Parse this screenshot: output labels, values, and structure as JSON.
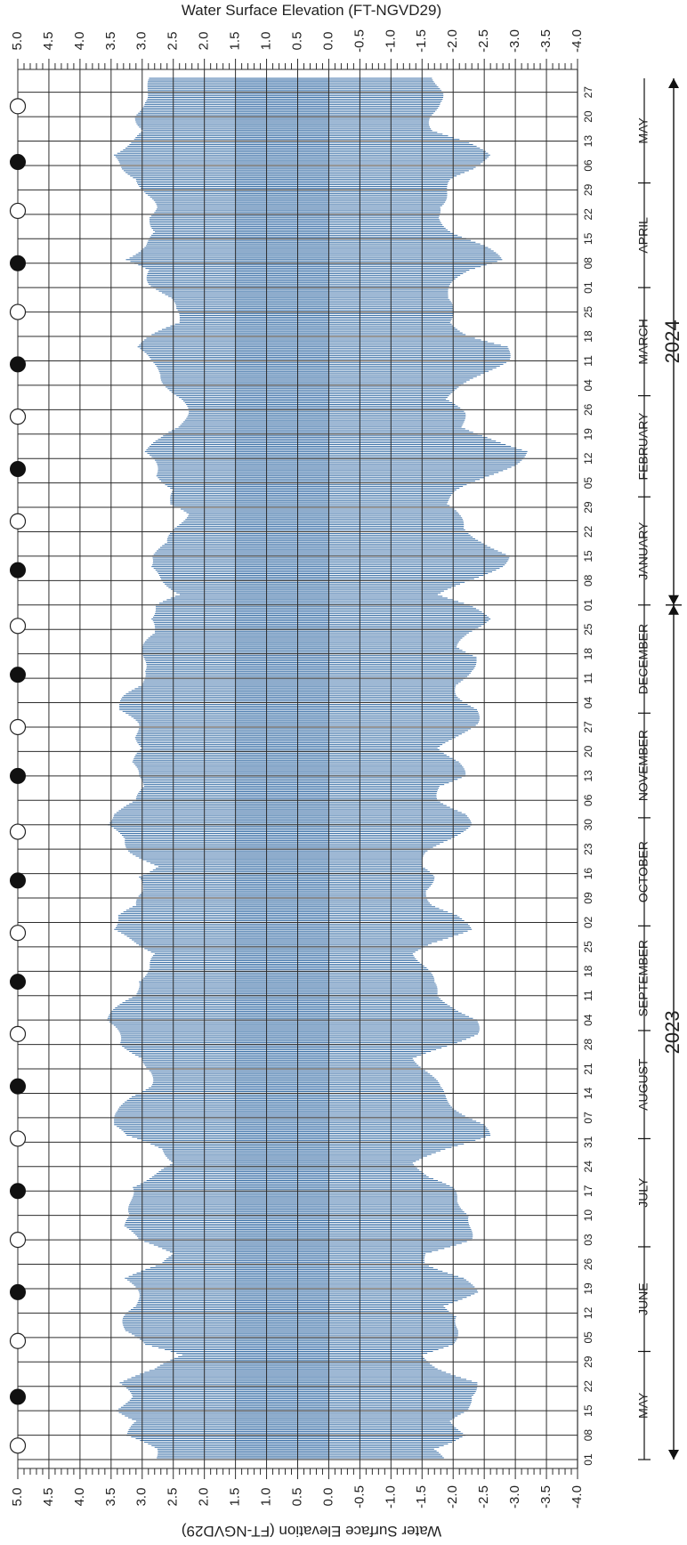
{
  "chart_data": {
    "type": "bar",
    "orientation": "horizontal",
    "x_axis_title": "Water Surface Elevation (FT-NGVD29)",
    "x_ticks": [
      5.0,
      4.5,
      4.0,
      3.5,
      3.0,
      2.5,
      2.0,
      1.5,
      1.0,
      0.5,
      0.0,
      -0.5,
      -1.0,
      -1.5,
      -2.0,
      -2.5,
      -3.0,
      -3.5,
      -4.0
    ],
    "x_tick_labels": [
      "5.0",
      "4.5",
      "4.0",
      "3.5",
      "3.0",
      "2.5",
      "2.0",
      "1.5",
      "1.0",
      "0.5",
      "0.0",
      "-0.5",
      "-1.0",
      "-1.5",
      "-2.0",
      "-2.5",
      "-3.0",
      "-3.5",
      "-4.0"
    ],
    "x_range": [
      5.0,
      -4.0
    ],
    "y_range": [
      "2023-05-01",
      "2024-05-31"
    ],
    "grid": true,
    "date_labels": [
      "01",
      "08",
      "15",
      "22",
      "29",
      "05",
      "12",
      "19",
      "26",
      "03",
      "10",
      "17",
      "24",
      "31",
      "07",
      "14",
      "21",
      "28",
      "04",
      "11",
      "18",
      "25",
      "02",
      "09",
      "16",
      "23",
      "30",
      "06",
      "13",
      "20",
      "27",
      "04",
      "11",
      "18",
      "25",
      "01",
      "08",
      "15",
      "22",
      "29",
      "05",
      "12",
      "19",
      "26",
      "04",
      "11",
      "18",
      "25",
      "01",
      "08",
      "15",
      "22",
      "29",
      "06",
      "13",
      "20",
      "27"
    ],
    "months": [
      "MAY",
      "JUNE",
      "JULY",
      "AUGUST",
      "SEPTEMBER",
      "OCTOBER",
      "NOVEMBER",
      "DECEMBER",
      "JANUARY",
      "FEBRUARY",
      "MARCH",
      "APRIL",
      "MAY"
    ],
    "years": [
      "2023",
      "2024"
    ],
    "series": [],
    "tide_range_envelope": {
      "dates": [
        "2023-05-01",
        "2023-05-04",
        "2023-05-08",
        "2023-05-12",
        "2023-05-15",
        "2023-05-19",
        "2023-05-23",
        "2023-05-27",
        "2023-05-31",
        "2023-06-03",
        "2023-06-07",
        "2023-06-11",
        "2023-06-14",
        "2023-06-18",
        "2023-06-22",
        "2023-06-26",
        "2023-06-29",
        "2023-07-03",
        "2023-07-07",
        "2023-07-10",
        "2023-07-14",
        "2023-07-18",
        "2023-07-21",
        "2023-07-25",
        "2023-07-29",
        "2023-08-02",
        "2023-08-05",
        "2023-08-09",
        "2023-08-13",
        "2023-08-16",
        "2023-08-20",
        "2023-08-24",
        "2023-08-28",
        "2023-08-31",
        "2023-09-04",
        "2023-09-08",
        "2023-09-11",
        "2023-09-15",
        "2023-09-19",
        "2023-09-23",
        "2023-09-26",
        "2023-09-30",
        "2023-10-04",
        "2023-10-07",
        "2023-10-11",
        "2023-10-15",
        "2023-10-18",
        "2023-10-22",
        "2023-10-26",
        "2023-10-30",
        "2023-11-02",
        "2023-11-06",
        "2023-11-10",
        "2023-11-13",
        "2023-11-17",
        "2023-11-21",
        "2023-11-24",
        "2023-11-28",
        "2023-12-02",
        "2023-12-06",
        "2023-12-09",
        "2023-12-13",
        "2023-12-17",
        "2023-12-20",
        "2023-12-24",
        "2023-12-28",
        "2024-01-01",
        "2024-01-04",
        "2024-01-08",
        "2024-01-12",
        "2024-01-15",
        "2024-01-19",
        "2024-01-23",
        "2024-01-27",
        "2024-01-30",
        "2024-02-03",
        "2024-02-07",
        "2024-02-10",
        "2024-02-14",
        "2024-02-18",
        "2024-02-21",
        "2024-02-25",
        "2024-02-29",
        "2024-03-03",
        "2024-03-07",
        "2024-03-11",
        "2024-03-15",
        "2024-03-18",
        "2024-03-22",
        "2024-03-26",
        "2024-03-29",
        "2024-04-02",
        "2024-04-06",
        "2024-04-09",
        "2024-04-13",
        "2024-04-17",
        "2024-04-21",
        "2024-04-24",
        "2024-04-28",
        "2024-05-02",
        "2024-05-05",
        "2024-05-09",
        "2024-05-13",
        "2024-05-16",
        "2024-05-20",
        "2024-05-24",
        "2024-05-27",
        "2024-05-31"
      ],
      "high": [
        2.9,
        3.0,
        3.4,
        3.1,
        3.5,
        3.4,
        3.5,
        2.8,
        2.5,
        3.2,
        3.4,
        3.3,
        3.2,
        3.3,
        3.4,
        2.7,
        2.6,
        3.3,
        3.4,
        3.2,
        3.3,
        3.4,
        3.0,
        2.5,
        2.8,
        3.5,
        3.6,
        3.4,
        3.3,
        3.1,
        3.0,
        3.0,
        3.5,
        3.6,
        3.7,
        3.4,
        3.2,
        3.3,
        3.0,
        2.8,
        3.2,
        3.7,
        3.5,
        3.1,
        3.1,
        3.3,
        2.9,
        3.2,
        3.4,
        3.8,
        3.6,
        3.1,
        3.1,
        3.3,
        3.3,
        3.0,
        3.2,
        3.3,
        3.5,
        3.3,
        3.1,
        3.2,
        3.1,
        3.0,
        2.9,
        3.1,
        2.9,
        2.4,
        2.8,
        3.1,
        3.0,
        2.6,
        2.6,
        2.5,
        2.7,
        2.5,
        2.9,
        3.0,
        3.1,
        2.7,
        2.5,
        2.5,
        2.5,
        2.6,
        2.8,
        3.1,
        3.2,
        2.9,
        2.5,
        2.7,
        2.7,
        2.9,
        3.0,
        3.5,
        3.1,
        2.8,
        3.0,
        3.0,
        3.1,
        3.1,
        3.4,
        3.7,
        3.3,
        3.0,
        3.2,
        3.2,
        3.1,
        2.9
      ],
      "low": [
        -2.0,
        -1.7,
        -2.3,
        -2.2,
        -2.4,
        -2.3,
        -2.5,
        -2.0,
        -1.6,
        -2.0,
        -2.2,
        -2.3,
        -2.0,
        -2.4,
        -2.3,
        -1.8,
        -1.7,
        -2.3,
        -2.4,
        -2.5,
        -2.2,
        -2.0,
        -1.7,
        -1.6,
        -2.0,
        -2.6,
        -2.6,
        -2.3,
        -2.0,
        -1.8,
        -1.7,
        -1.6,
        -2.1,
        -2.4,
        -2.5,
        -2.2,
        -1.9,
        -1.7,
        -1.7,
        -1.6,
        -1.8,
        -2.3,
        -2.2,
        -1.9,
        -1.7,
        -1.7,
        -1.6,
        -1.8,
        -2.1,
        -2.3,
        -2.3,
        -2.0,
        -1.9,
        -2.2,
        -2.2,
        -2.0,
        -2.2,
        -2.4,
        -2.5,
        -2.3,
        -2.2,
        -2.3,
        -2.5,
        -2.3,
        -2.4,
        -2.6,
        -2.4,
        -2.0,
        -2.4,
        -2.8,
        -3.0,
        -2.7,
        -2.3,
        -2.1,
        -2.0,
        -2.3,
        -2.7,
        -3.0,
        -3.3,
        -2.8,
        -2.3,
        -2.2,
        -2.0,
        -2.3,
        -2.6,
        -2.9,
        -3.0,
        -2.5,
        -2.1,
        -2.0,
        -2.0,
        -2.2,
        -2.4,
        -2.8,
        -2.6,
        -2.2,
        -1.9,
        -1.8,
        -2.0,
        -2.2,
        -2.5,
        -2.6,
        -2.3,
        -1.9,
        -1.8,
        -1.8,
        -1.9,
        -1.9
      ]
    },
    "moon_phases": {
      "full_moon": [
        "2023-05-05",
        "2023-06-04",
        "2023-07-03",
        "2023-08-01",
        "2023-08-31",
        "2023-09-29",
        "2023-10-28",
        "2023-11-27",
        "2023-12-26",
        "2024-01-25",
        "2024-02-24",
        "2024-03-25",
        "2024-04-23",
        "2024-05-23"
      ],
      "new_moon": [
        "2023-05-19",
        "2023-06-18",
        "2023-07-17",
        "2023-08-16",
        "2023-09-15",
        "2023-10-14",
        "2023-11-13",
        "2023-12-12",
        "2024-01-11",
        "2024-02-09",
        "2024-03-10",
        "2024-04-08",
        "2024-05-07"
      ]
    },
    "colors": {
      "bar": "#3e72a8",
      "grid": "#2d2d2d",
      "shade": "#dde7f1",
      "text": "#222222"
    }
  }
}
